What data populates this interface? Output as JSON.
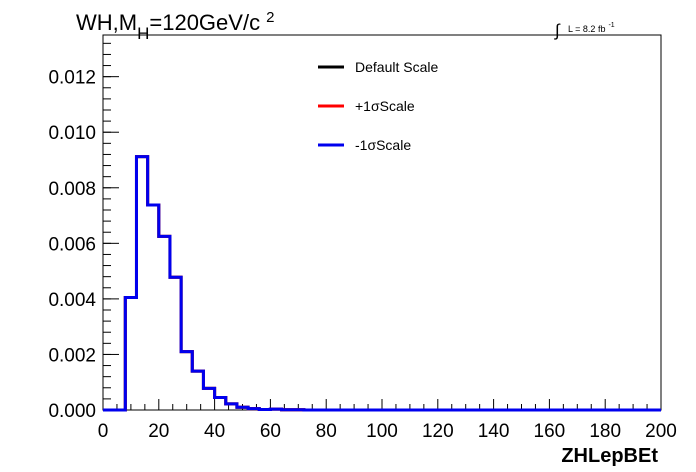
{
  "chart_data": {
    "type": "histogram",
    "title_main": "WH,M",
    "title_sub": "H",
    "title_rest": "=120GeV/c",
    "title_sup": "2",
    "lumi_main": "L = 8.2 fb",
    "lumi_sup": "-1",
    "xlabel": "ZHLepBEt",
    "xlim": [
      0,
      200
    ],
    "ylim": [
      0,
      0.0135
    ],
    "x_ticks": [
      "0",
      "20",
      "40",
      "60",
      "80",
      "100",
      "120",
      "140",
      "160",
      "180",
      "200"
    ],
    "y_ticks": [
      "0.000",
      "0.002",
      "0.004",
      "0.006",
      "0.008",
      "0.010",
      "0.012"
    ],
    "bin_width": 4,
    "bin_edges_start": 0,
    "series": [
      {
        "name": "Default Scale",
        "color": "#000000",
        "values": [
          0,
          0,
          0.00405,
          0.00912,
          0.00738,
          0.00625,
          0.00478,
          0.0021,
          0.0014,
          0.00078,
          0.00045,
          0.00022,
          0.0001,
          5e-05,
          2e-05,
          3e-05,
          1e-05,
          1e-05
        ]
      },
      {
        "name": "+1σScale",
        "color": "#ff0000",
        "values": [
          0,
          0,
          0.00405,
          0.00912,
          0.00738,
          0.00625,
          0.00478,
          0.0021,
          0.0014,
          0.00078,
          0.00045,
          0.00022,
          0.0001,
          5e-05,
          2e-05,
          3e-05,
          1e-05,
          1e-05
        ]
      },
      {
        "name": "-1σScale",
        "color": "#0000ee",
        "values": [
          0,
          0,
          0.00405,
          0.00912,
          0.00738,
          0.00625,
          0.00478,
          0.0021,
          0.0014,
          0.00078,
          0.00045,
          0.00022,
          0.0001,
          5e-05,
          2e-05,
          3e-05,
          1e-05,
          1e-05
        ]
      }
    ],
    "legend_position": "top-center",
    "grid": false
  }
}
